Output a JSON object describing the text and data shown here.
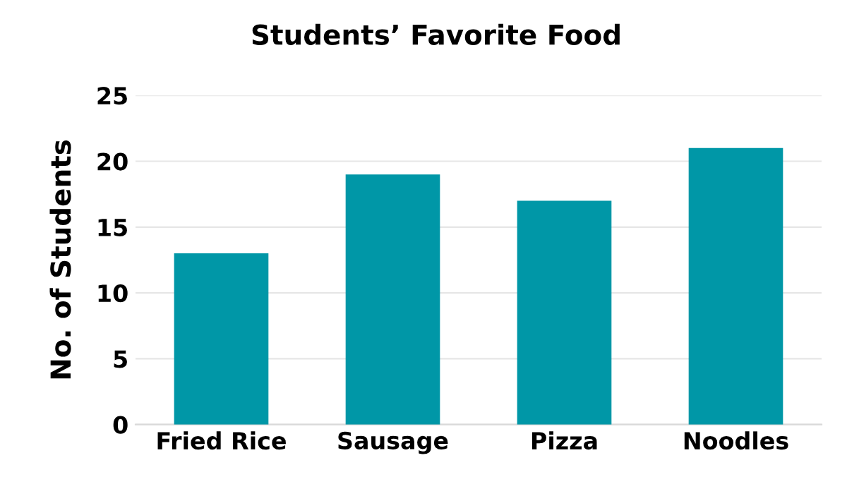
{
  "chart_data": {
    "type": "bar",
    "title": "Students’ Favorite Food",
    "ylabel": "No. of Students",
    "categories": [
      "Fried Rice",
      "Sausage",
      "Pizza",
      "Noodles"
    ],
    "values": [
      13,
      19,
      17,
      21
    ],
    "color": "#0097a7",
    "ylim": [
      0,
      25
    ],
    "yticks": [
      0,
      5,
      10,
      15,
      20,
      25
    ],
    "grid": "y"
  }
}
